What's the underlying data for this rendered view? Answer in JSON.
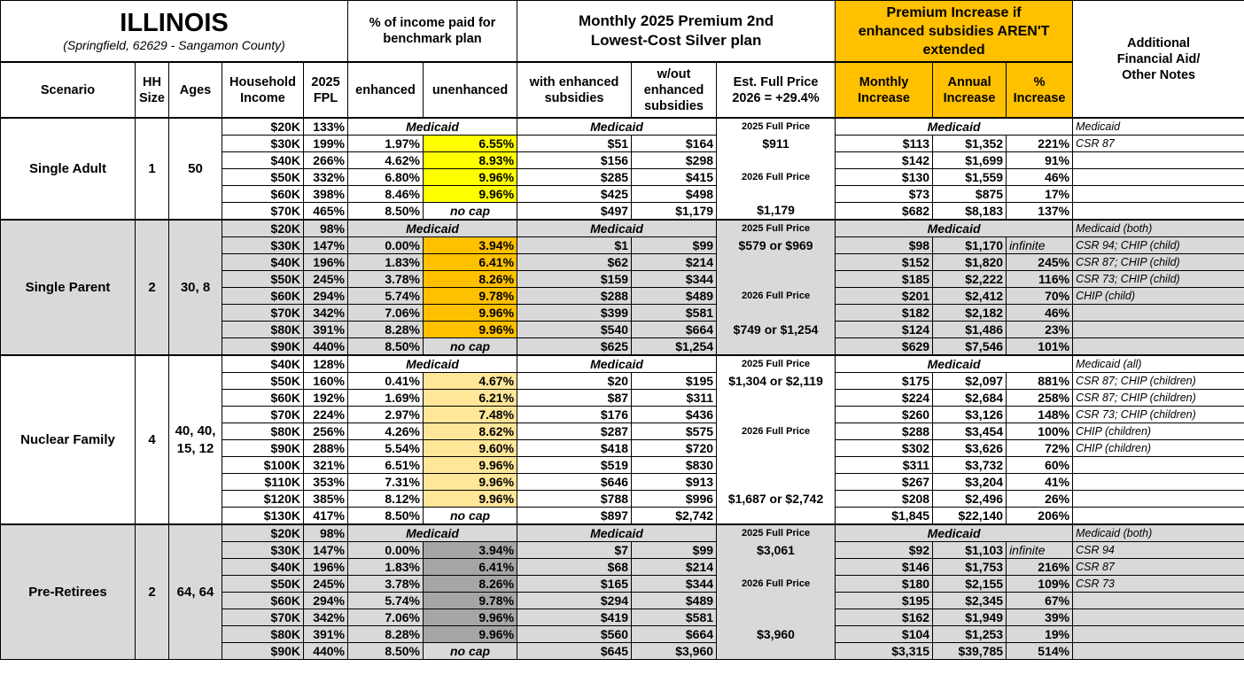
{
  "header": {
    "title": "ILLINOIS",
    "subtitle": "(Springfield, 62629 - Sangamon County)",
    "group_pct_income": "% of income paid for benchmark plan",
    "group_premium": "Monthly 2025 Premium 2nd Lowest-Cost Silver plan",
    "group_increase": "Premium Increase if enhanced subsidies AREN'T extended",
    "notes": "Additional Financial Aid/ Other Notes",
    "columns": {
      "scenario": "Scenario",
      "hh_size": "HH Size",
      "ages": "Ages",
      "income": "Household Income",
      "fpl": "2025 FPL",
      "enhanced": "enhanced",
      "unenhanced": "unenhanced",
      "with_enhanced": "with enhanced subsidies",
      "without_enhanced": "w/out enhanced subsidies",
      "est_full_price": "Est. Full Price 2026 = +29.4%",
      "monthly_increase": "Monthly Increase",
      "annual_increase": "Annual Increase",
      "pct_increase": "% Increase"
    }
  },
  "colors": {
    "header_orange": "#ffc000",
    "section_gray": "#d9d9d9"
  },
  "sections": [
    {
      "scenario": "Single Adult",
      "hh_size": "1",
      "ages": "50",
      "highlight": "#ffff00",
      "background": "#ffffff",
      "rows": [
        {
          "income": "$20K",
          "fpl": "133%",
          "medicaid": "Medicaid",
          "est": "2025 Full Price",
          "notes": "Medicaid"
        },
        {
          "income": "$30K",
          "fpl": "199%",
          "enh": "1.97%",
          "unenh": "6.55%",
          "with": "$51",
          "without": "$164",
          "est": "$911",
          "monthly": "$113",
          "annual": "$1,352",
          "pct": "221%",
          "notes": "CSR 87"
        },
        {
          "income": "$40K",
          "fpl": "266%",
          "enh": "4.62%",
          "unenh": "8.93%",
          "with": "$156",
          "without": "$298",
          "est": "",
          "monthly": "$142",
          "annual": "$1,699",
          "pct": "91%",
          "notes": ""
        },
        {
          "income": "$50K",
          "fpl": "332%",
          "enh": "6.80%",
          "unenh": "9.96%",
          "with": "$285",
          "without": "$415",
          "est": "2026 Full Price",
          "monthly": "$130",
          "annual": "$1,559",
          "pct": "46%",
          "notes": ""
        },
        {
          "income": "$60K",
          "fpl": "398%",
          "enh": "8.46%",
          "unenh": "9.96%",
          "with": "$425",
          "without": "$498",
          "est": "",
          "monthly": "$73",
          "annual": "$875",
          "pct": "17%",
          "notes": ""
        },
        {
          "income": "$70K",
          "fpl": "465%",
          "enh": "8.50%",
          "unenh": "no cap",
          "with": "$497",
          "without": "$1,179",
          "est": "$1,179",
          "monthly": "$682",
          "annual": "$8,183",
          "pct": "137%",
          "notes": ""
        }
      ]
    },
    {
      "scenario": "Single Parent",
      "hh_size": "2",
      "ages": "30, 8",
      "highlight": "#ffc000",
      "background": "#d9d9d9",
      "rows": [
        {
          "income": "$20K",
          "fpl": "98%",
          "medicaid": "Medicaid",
          "est": "2025 Full Price",
          "notes": "Medicaid (both)"
        },
        {
          "income": "$30K",
          "fpl": "147%",
          "enh": "0.00%",
          "unenh": "3.94%",
          "with": "$1",
          "without": "$99",
          "est": "$579 or $969",
          "monthly": "$98",
          "annual": "$1,170",
          "pct": "infinite",
          "notes": "CSR 94; CHIP (child)"
        },
        {
          "income": "$40K",
          "fpl": "196%",
          "enh": "1.83%",
          "unenh": "6.41%",
          "with": "$62",
          "without": "$214",
          "est": "",
          "monthly": "$152",
          "annual": "$1,820",
          "pct": "245%",
          "notes": "CSR 87; CHIP (child)"
        },
        {
          "income": "$50K",
          "fpl": "245%",
          "enh": "3.78%",
          "unenh": "8.26%",
          "with": "$159",
          "without": "$344",
          "est": "",
          "monthly": "$185",
          "annual": "$2,222",
          "pct": "116%",
          "notes": "CSR 73; CHIP (child)"
        },
        {
          "income": "$60K",
          "fpl": "294%",
          "enh": "5.74%",
          "unenh": "9.78%",
          "with": "$288",
          "without": "$489",
          "est": "2026 Full Price",
          "monthly": "$201",
          "annual": "$2,412",
          "pct": "70%",
          "notes": "CHIP (child)"
        },
        {
          "income": "$70K",
          "fpl": "342%",
          "enh": "7.06%",
          "unenh": "9.96%",
          "with": "$399",
          "without": "$581",
          "est": "",
          "monthly": "$182",
          "annual": "$2,182",
          "pct": "46%",
          "notes": ""
        },
        {
          "income": "$80K",
          "fpl": "391%",
          "enh": "8.28%",
          "unenh": "9.96%",
          "with": "$540",
          "without": "$664",
          "est": "$749 or $1,254",
          "monthly": "$124",
          "annual": "$1,486",
          "pct": "23%",
          "notes": ""
        },
        {
          "income": "$90K",
          "fpl": "440%",
          "enh": "8.50%",
          "unenh": "no cap",
          "with": "$625",
          "without": "$1,254",
          "est": "",
          "monthly": "$629",
          "annual": "$7,546",
          "pct": "101%",
          "notes": ""
        }
      ]
    },
    {
      "scenario": "Nuclear Family",
      "hh_size": "4",
      "ages": "40, 40, 15, 12",
      "highlight": "#ffe699",
      "background": "#ffffff",
      "rows": [
        {
          "income": "$40K",
          "fpl": "128%",
          "medicaid": "Medicaid",
          "est": "2025 Full Price",
          "notes": "Medicaid (all)"
        },
        {
          "income": "$50K",
          "fpl": "160%",
          "enh": "0.41%",
          "unenh": "4.67%",
          "with": "$20",
          "without": "$195",
          "est": "$1,304 or $2,119",
          "monthly": "$175",
          "annual": "$2,097",
          "pct": "881%",
          "notes": "CSR 87; CHIP (children)"
        },
        {
          "income": "$60K",
          "fpl": "192%",
          "enh": "1.69%",
          "unenh": "6.21%",
          "with": "$87",
          "without": "$311",
          "est": "",
          "monthly": "$224",
          "annual": "$2,684",
          "pct": "258%",
          "notes": "CSR 87; CHIP (children)"
        },
        {
          "income": "$70K",
          "fpl": "224%",
          "enh": "2.97%",
          "unenh": "7.48%",
          "with": "$176",
          "without": "$436",
          "est": "",
          "monthly": "$260",
          "annual": "$3,126",
          "pct": "148%",
          "notes": "CSR 73; CHIP (children)"
        },
        {
          "income": "$80K",
          "fpl": "256%",
          "enh": "4.26%",
          "unenh": "8.62%",
          "with": "$287",
          "without": "$575",
          "est": "2026 Full Price",
          "monthly": "$288",
          "annual": "$3,454",
          "pct": "100%",
          "notes": "CHIP (children)"
        },
        {
          "income": "$90K",
          "fpl": "288%",
          "enh": "5.54%",
          "unenh": "9.60%",
          "with": "$418",
          "without": "$720",
          "est": "",
          "monthly": "$302",
          "annual": "$3,626",
          "pct": "72%",
          "notes": "CHIP (children)"
        },
        {
          "income": "$100K",
          "fpl": "321%",
          "enh": "6.51%",
          "unenh": "9.96%",
          "with": "$519",
          "without": "$830",
          "est": "",
          "monthly": "$311",
          "annual": "$3,732",
          "pct": "60%",
          "notes": ""
        },
        {
          "income": "$110K",
          "fpl": "353%",
          "enh": "7.31%",
          "unenh": "9.96%",
          "with": "$646",
          "without": "$913",
          "est": "",
          "monthly": "$267",
          "annual": "$3,204",
          "pct": "41%",
          "notes": ""
        },
        {
          "income": "$120K",
          "fpl": "385%",
          "enh": "8.12%",
          "unenh": "9.96%",
          "with": "$788",
          "without": "$996",
          "est": "$1,687 or $2,742",
          "monthly": "$208",
          "annual": "$2,496",
          "pct": "26%",
          "notes": ""
        },
        {
          "income": "$130K",
          "fpl": "417%",
          "enh": "8.50%",
          "unenh": "no cap",
          "with": "$897",
          "without": "$2,742",
          "est": "",
          "monthly": "$1,845",
          "annual": "$22,140",
          "pct": "206%",
          "notes": ""
        }
      ]
    },
    {
      "scenario": "Pre-Retirees",
      "hh_size": "2",
      "ages": "64, 64",
      "highlight": "#a6a6a6",
      "background": "#d9d9d9",
      "rows": [
        {
          "income": "$20K",
          "fpl": "98%",
          "medicaid": "Medicaid",
          "est": "2025 Full Price",
          "notes": "Medicaid (both)"
        },
        {
          "income": "$30K",
          "fpl": "147%",
          "enh": "0.00%",
          "unenh": "3.94%",
          "with": "$7",
          "without": "$99",
          "est": "$3,061",
          "monthly": "$92",
          "annual": "$1,103",
          "pct": "infinite",
          "notes": "CSR 94"
        },
        {
          "income": "$40K",
          "fpl": "196%",
          "enh": "1.83%",
          "unenh": "6.41%",
          "with": "$68",
          "without": "$214",
          "est": "",
          "monthly": "$146",
          "annual": "$1,753",
          "pct": "216%",
          "notes": "CSR 87"
        },
        {
          "income": "$50K",
          "fpl": "245%",
          "enh": "3.78%",
          "unenh": "8.26%",
          "with": "$165",
          "without": "$344",
          "est": "2026 Full Price",
          "monthly": "$180",
          "annual": "$2,155",
          "pct": "109%",
          "notes": "CSR 73"
        },
        {
          "income": "$60K",
          "fpl": "294%",
          "enh": "5.74%",
          "unenh": "9.78%",
          "with": "$294",
          "without": "$489",
          "est": "",
          "monthly": "$195",
          "annual": "$2,345",
          "pct": "67%",
          "notes": ""
        },
        {
          "income": "$70K",
          "fpl": "342%",
          "enh": "7.06%",
          "unenh": "9.96%",
          "with": "$419",
          "without": "$581",
          "est": "",
          "monthly": "$162",
          "annual": "$1,949",
          "pct": "39%",
          "notes": ""
        },
        {
          "income": "$80K",
          "fpl": "391%",
          "enh": "8.28%",
          "unenh": "9.96%",
          "with": "$560",
          "without": "$664",
          "est": "$3,960",
          "monthly": "$104",
          "annual": "$1,253",
          "pct": "19%",
          "notes": ""
        },
        {
          "income": "$90K",
          "fpl": "440%",
          "enh": "8.50%",
          "unenh": "no cap",
          "with": "$645",
          "without": "$3,960",
          "est": "",
          "monthly": "$3,315",
          "annual": "$39,785",
          "pct": "514%",
          "notes": ""
        }
      ]
    }
  ]
}
